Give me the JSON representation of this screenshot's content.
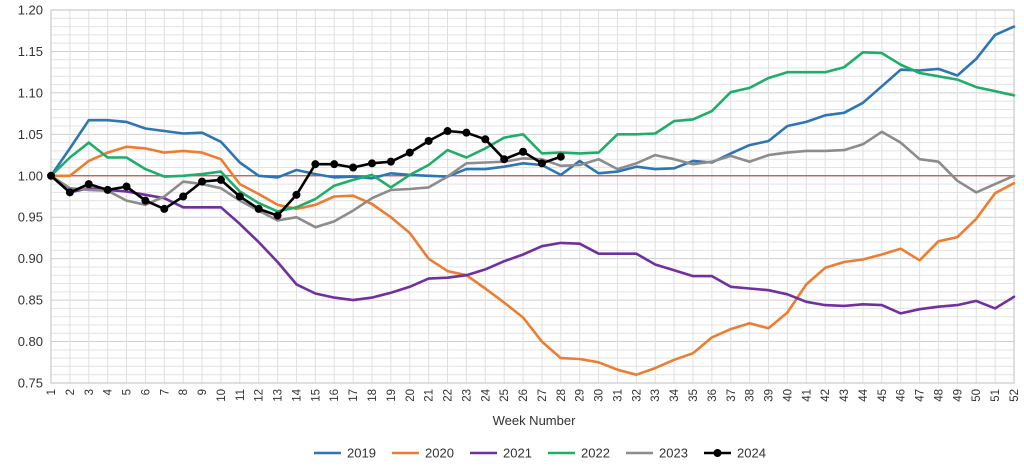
{
  "chart_data": {
    "type": "line",
    "title": "",
    "xlabel": "Week Number",
    "ylabel": "",
    "xlim": [
      1,
      52
    ],
    "ylim": [
      0.75,
      1.2
    ],
    "y_ticks": [
      "0.75",
      "0.80",
      "0.85",
      "0.90",
      "0.95",
      "1.00",
      "1.05",
      "1.10",
      "1.15",
      "1.20"
    ],
    "x_ticks": [
      1,
      2,
      3,
      4,
      5,
      6,
      7,
      8,
      9,
      10,
      11,
      12,
      13,
      14,
      15,
      16,
      17,
      18,
      19,
      20,
      21,
      22,
      23,
      24,
      25,
      26,
      27,
      28,
      29,
      30,
      31,
      32,
      33,
      34,
      35,
      36,
      37,
      38,
      39,
      40,
      41,
      42,
      43,
      44,
      45,
      46,
      47,
      48,
      49,
      50,
      51,
      52
    ],
    "grid": true,
    "reference_line": 1.0,
    "reference_color": "#c0504d",
    "legend_position": "bottom",
    "series": [
      {
        "name": "2019",
        "color": "#2e75b6",
        "markers": false,
        "values": [
          1.0,
          1.033,
          1.067,
          1.067,
          1.065,
          1.057,
          1.054,
          1.051,
          1.052,
          1.041,
          1.016,
          1.0,
          0.998,
          1.007,
          1.002,
          0.998,
          0.999,
          0.997,
          1.003,
          1.001,
          1.0,
          0.999,
          1.008,
          1.008,
          1.011,
          1.015,
          1.013,
          1.001,
          1.018,
          1.003,
          1.005,
          1.011,
          1.008,
          1.009,
          1.018,
          1.016,
          1.027,
          1.037,
          1.042,
          1.06,
          1.065,
          1.073,
          1.076,
          1.088,
          1.108,
          1.128,
          1.127,
          1.129,
          1.121,
          1.141,
          1.17,
          1.18
        ]
      },
      {
        "name": "2020",
        "color": "#ed7d31",
        "markers": false,
        "values": [
          1.0,
          1.0,
          1.018,
          1.028,
          1.035,
          1.033,
          1.028,
          1.03,
          1.028,
          1.02,
          0.99,
          0.978,
          0.965,
          0.96,
          0.965,
          0.975,
          0.976,
          0.966,
          0.95,
          0.931,
          0.9,
          0.885,
          0.88,
          0.864,
          0.847,
          0.829,
          0.8,
          0.78,
          0.779,
          0.775,
          0.766,
          0.76,
          0.768,
          0.778,
          0.786,
          0.805,
          0.815,
          0.822,
          0.816,
          0.835,
          0.869,
          0.889,
          0.896,
          0.899,
          0.905,
          0.912,
          0.898,
          0.921,
          0.926,
          0.948,
          0.979,
          0.991
        ]
      },
      {
        "name": "2021",
        "color": "#7030a0",
        "markers": false,
        "values": [
          1.0,
          0.98,
          0.985,
          0.983,
          0.981,
          0.977,
          0.973,
          0.962,
          0.962,
          0.962,
          0.942,
          0.92,
          0.896,
          0.869,
          0.858,
          0.853,
          0.85,
          0.853,
          0.859,
          0.866,
          0.876,
          0.877,
          0.88,
          0.887,
          0.897,
          0.905,
          0.915,
          0.919,
          0.918,
          0.906,
          0.906,
          0.906,
          0.893,
          0.886,
          0.879,
          0.879,
          0.866,
          0.864,
          0.862,
          0.857,
          0.848,
          0.844,
          0.843,
          0.845,
          0.844,
          0.834,
          0.839,
          0.842,
          0.844,
          0.849,
          0.84,
          0.854
        ]
      },
      {
        "name": "2022",
        "color": "#1fae6a",
        "markers": false,
        "values": [
          1.0,
          1.022,
          1.04,
          1.022,
          1.022,
          1.008,
          0.999,
          1.0,
          1.002,
          1.005,
          0.981,
          0.967,
          0.957,
          0.962,
          0.972,
          0.988,
          0.995,
          1.001,
          0.986,
          1.001,
          1.013,
          1.031,
          1.022,
          1.033,
          1.046,
          1.05,
          1.027,
          1.028,
          1.027,
          1.028,
          1.05,
          1.05,
          1.051,
          1.066,
          1.068,
          1.078,
          1.101,
          1.106,
          1.118,
          1.125,
          1.125,
          1.125,
          1.131,
          1.149,
          1.148,
          1.134,
          1.124,
          1.12,
          1.116,
          1.107,
          1.102,
          1.097
        ]
      },
      {
        "name": "2023",
        "color": "#8c8c8c",
        "markers": false,
        "values": [
          1.0,
          0.985,
          0.983,
          0.982,
          0.97,
          0.965,
          0.975,
          0.993,
          0.99,
          0.985,
          0.97,
          0.958,
          0.946,
          0.95,
          0.938,
          0.945,
          0.958,
          0.973,
          0.983,
          0.984,
          0.986,
          0.999,
          1.015,
          1.016,
          1.017,
          1.021,
          1.02,
          1.012,
          1.013,
          1.02,
          1.008,
          1.015,
          1.025,
          1.02,
          1.014,
          1.017,
          1.024,
          1.017,
          1.025,
          1.028,
          1.03,
          1.03,
          1.031,
          1.038,
          1.053,
          1.04,
          1.02,
          1.017,
          0.994,
          0.98,
          0.99,
          1.0
        ]
      },
      {
        "name": "2024",
        "color": "#000000",
        "markers": true,
        "values": [
          1.0,
          0.98,
          0.99,
          0.983,
          0.987,
          0.97,
          0.96,
          0.975,
          0.993,
          0.995,
          0.975,
          0.96,
          0.952,
          0.977,
          1.014,
          1.014,
          1.01,
          1.015,
          1.017,
          1.028,
          1.042,
          1.054,
          1.052,
          1.044,
          1.02,
          1.029,
          1.015,
          1.023
        ]
      }
    ]
  }
}
